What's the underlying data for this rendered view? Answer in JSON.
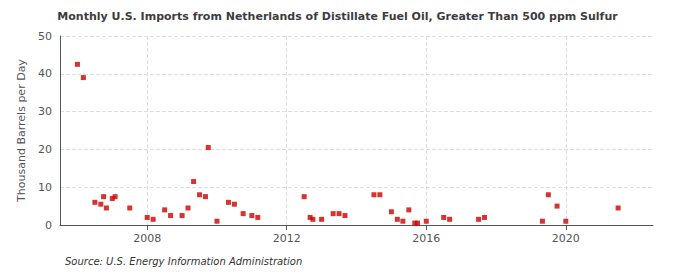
{
  "chart_data": {
    "type": "scatter",
    "title": "Monthly U.S. Imports from Netherlands of Distillate Fuel Oil, Greater Than 500 ppm Sulfur",
    "ylabel": "Thousand Barrels per Day",
    "annotation": "Source: U.S. Energy Information Administration",
    "color": "#cc0000",
    "marker": "square",
    "grid": true,
    "x": [
      2006.0,
      2006.17,
      2006.5,
      2006.67,
      2006.75,
      2006.83,
      2007.0,
      2007.08,
      2007.5,
      2008.0,
      2008.17,
      2008.5,
      2008.67,
      2009.0,
      2009.17,
      2009.33,
      2009.5,
      2009.67,
      2009.75,
      2010.0,
      2010.33,
      2010.5,
      2010.75,
      2011.0,
      2011.17,
      2012.5,
      2012.67,
      2012.75,
      2013.0,
      2013.33,
      2013.5,
      2013.67,
      2014.5,
      2014.67,
      2015.0,
      2015.17,
      2015.33,
      2015.5,
      2015.67,
      2015.75,
      2016.0,
      2016.5,
      2016.67,
      2017.5,
      2017.67,
      2019.33,
      2019.5,
      2019.75,
      2020.0,
      2021.5
    ],
    "values": [
      42.5,
      39.0,
      6.0,
      5.5,
      7.5,
      4.5,
      7.0,
      7.5,
      4.5,
      2.0,
      1.5,
      4.0,
      2.5,
      2.5,
      4.5,
      11.5,
      8.0,
      7.5,
      20.5,
      1.0,
      6.0,
      5.5,
      3.0,
      2.5,
      2.0,
      7.5,
      2.0,
      1.5,
      1.5,
      3.0,
      3.0,
      2.5,
      8.0,
      8.0,
      3.5,
      1.5,
      1.0,
      4.0,
      0.5,
      0.5,
      1.0,
      2.0,
      1.5,
      1.5,
      2.0,
      1.0,
      8.0,
      5.0,
      1.0,
      4.5
    ],
    "xlim": [
      2005.5,
      2022.5
    ],
    "xticks": [
      2008,
      2012,
      2016,
      2020
    ],
    "ylim": [
      0,
      50
    ],
    "yticks": [
      0,
      10,
      20,
      30,
      40,
      50
    ]
  }
}
